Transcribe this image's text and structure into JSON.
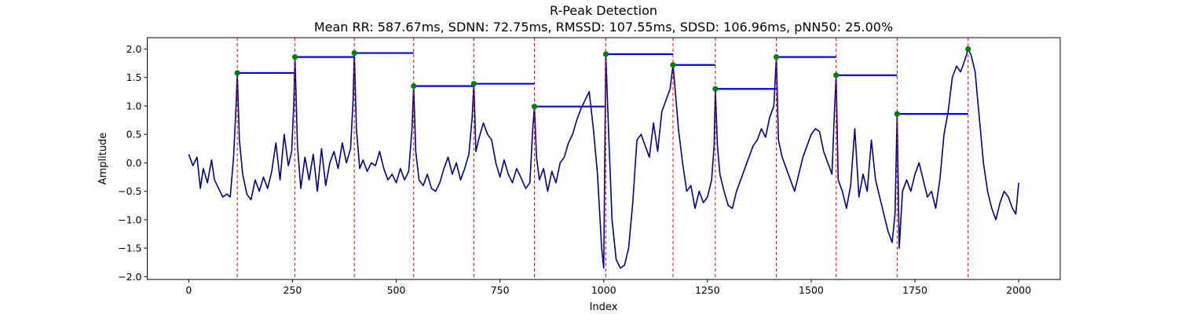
{
  "chart_data": {
    "type": "line",
    "title": "R-Peak Detection",
    "subtitle": "Mean RR: 587.67ms, SDNN: 72.75ms, RMSSD: 107.55ms, SDSD: 106.96ms, pNN50: 25.00%",
    "xlabel": "Index",
    "ylabel": "Amplitude",
    "xlim": [
      -100,
      2100
    ],
    "ylim": [
      -2.05,
      2.2
    ],
    "xticks": [
      0,
      250,
      500,
      750,
      1000,
      1250,
      1500,
      1750,
      2000
    ],
    "xtick_labels": [
      "0",
      "250",
      "500",
      "750",
      "1000",
      "1250",
      "1500",
      "1750",
      "2000"
    ],
    "yticks": [
      -2.0,
      -1.5,
      -1.0,
      -0.5,
      0.0,
      0.5,
      1.0,
      1.5,
      2.0
    ],
    "ytick_labels": [
      "−2.0",
      "−1.5",
      "−1.0",
      "−0.5",
      "0.0",
      "0.5",
      "1.0",
      "1.5",
      "2.0"
    ],
    "grid": false,
    "colors": {
      "signal": "#00008b",
      "peak_marker": "#008000",
      "peak_line": "#ff0000",
      "rr_segment": "#0000ff"
    },
    "signal_outline": [
      [
        0,
        0.15
      ],
      [
        10,
        -0.05
      ],
      [
        20,
        0.1
      ],
      [
        28,
        -0.45
      ],
      [
        35,
        -0.1
      ],
      [
        45,
        -0.35
      ],
      [
        55,
        0.05
      ],
      [
        62,
        -0.3
      ],
      [
        72,
        -0.45
      ],
      [
        82,
        -0.6
      ],
      [
        92,
        -0.55
      ],
      [
        100,
        -0.6
      ],
      [
        108,
        0.1
      ],
      [
        114,
        1.0
      ],
      [
        117,
        1.58
      ],
      [
        122,
        0.4
      ],
      [
        130,
        -0.2
      ],
      [
        140,
        -0.55
      ],
      [
        150,
        -0.65
      ],
      [
        160,
        -0.3
      ],
      [
        170,
        -0.5
      ],
      [
        180,
        -0.25
      ],
      [
        190,
        -0.45
      ],
      [
        200,
        -0.15
      ],
      [
        210,
        0.35
      ],
      [
        220,
        -0.3
      ],
      [
        230,
        0.5
      ],
      [
        240,
        -0.05
      ],
      [
        248,
        0.2
      ],
      [
        253,
        1.0
      ],
      [
        256,
        1.86
      ],
      [
        262,
        0.3
      ],
      [
        270,
        -0.45
      ],
      [
        280,
        0.1
      ],
      [
        290,
        -0.3
      ],
      [
        300,
        0.15
      ],
      [
        310,
        -0.5
      ],
      [
        320,
        0.25
      ],
      [
        330,
        -0.4
      ],
      [
        340,
        0.0
      ],
      [
        350,
        0.2
      ],
      [
        360,
        -0.1
      ],
      [
        370,
        0.35
      ],
      [
        380,
        0.0
      ],
      [
        390,
        0.25
      ],
      [
        396,
        1.1
      ],
      [
        399,
        1.93
      ],
      [
        404,
        0.6
      ],
      [
        412,
        -0.1
      ],
      [
        420,
        0.05
      ],
      [
        430,
        -0.15
      ],
      [
        440,
        0.0
      ],
      [
        450,
        -0.05
      ],
      [
        460,
        0.2
      ],
      [
        470,
        -0.1
      ],
      [
        480,
        -0.3
      ],
      [
        490,
        -0.2
      ],
      [
        500,
        -0.35
      ],
      [
        510,
        -0.1
      ],
      [
        520,
        -0.3
      ],
      [
        530,
        -0.15
      ],
      [
        538,
        0.6
      ],
      [
        542,
        1.35
      ],
      [
        547,
        0.2
      ],
      [
        555,
        -0.3
      ],
      [
        565,
        -0.4
      ],
      [
        575,
        -0.2
      ],
      [
        585,
        -0.45
      ],
      [
        595,
        -0.5
      ],
      [
        605,
        -0.35
      ],
      [
        615,
        -0.1
      ],
      [
        625,
        0.1
      ],
      [
        635,
        -0.2
      ],
      [
        645,
        0.0
      ],
      [
        655,
        -0.3
      ],
      [
        665,
        -0.1
      ],
      [
        675,
        0.15
      ],
      [
        683,
        0.8
      ],
      [
        687,
        1.39
      ],
      [
        692,
        0.2
      ],
      [
        700,
        0.45
      ],
      [
        710,
        0.7
      ],
      [
        720,
        0.5
      ],
      [
        730,
        0.4
      ],
      [
        740,
        0.0
      ],
      [
        750,
        -0.25
      ],
      [
        760,
        0.05
      ],
      [
        770,
        -0.2
      ],
      [
        780,
        -0.35
      ],
      [
        790,
        -0.1
      ],
      [
        800,
        -0.25
      ],
      [
        812,
        -0.45
      ],
      [
        822,
        -0.35
      ],
      [
        829,
        0.6
      ],
      [
        833,
        0.99
      ],
      [
        838,
        0.1
      ],
      [
        845,
        -0.3
      ],
      [
        855,
        -0.1
      ],
      [
        865,
        -0.5
      ],
      [
        875,
        -0.15
      ],
      [
        885,
        -0.35
      ],
      [
        895,
        0.0
      ],
      [
        905,
        0.1
      ],
      [
        915,
        0.35
      ],
      [
        925,
        0.5
      ],
      [
        935,
        0.75
      ],
      [
        945,
        0.95
      ],
      [
        955,
        1.1
      ],
      [
        965,
        1.25
      ],
      [
        975,
        0.6
      ],
      [
        985,
        -0.2
      ],
      [
        995,
        -1.5
      ],
      [
        1000,
        -1.85
      ],
      [
        1005,
        1.91
      ],
      [
        1012,
        0.5
      ],
      [
        1020,
        -1.0
      ],
      [
        1030,
        -1.7
      ],
      [
        1040,
        -1.85
      ],
      [
        1050,
        -1.8
      ],
      [
        1060,
        -1.5
      ],
      [
        1070,
        -0.7
      ],
      [
        1080,
        0.4
      ],
      [
        1090,
        0.5
      ],
      [
        1100,
        0.3
      ],
      [
        1110,
        0.1
      ],
      [
        1120,
        0.7
      ],
      [
        1130,
        0.2
      ],
      [
        1140,
        0.9
      ],
      [
        1150,
        1.1
      ],
      [
        1160,
        1.3
      ],
      [
        1167,
        1.72
      ],
      [
        1172,
        1.3
      ],
      [
        1180,
        0.6
      ],
      [
        1190,
        0.0
      ],
      [
        1200,
        -0.5
      ],
      [
        1210,
        -0.4
      ],
      [
        1220,
        -0.8
      ],
      [
        1230,
        -0.5
      ],
      [
        1240,
        -0.7
      ],
      [
        1250,
        -0.6
      ],
      [
        1260,
        -0.3
      ],
      [
        1266,
        0.3
      ],
      [
        1269,
        1.3
      ],
      [
        1274,
        0.3
      ],
      [
        1280,
        -0.2
      ],
      [
        1290,
        -0.5
      ],
      [
        1300,
        -0.75
      ],
      [
        1310,
        -0.8
      ],
      [
        1320,
        -0.5
      ],
      [
        1330,
        -0.3
      ],
      [
        1340,
        -0.1
      ],
      [
        1350,
        0.1
      ],
      [
        1360,
        0.3
      ],
      [
        1370,
        0.4
      ],
      [
        1380,
        0.6
      ],
      [
        1390,
        0.45
      ],
      [
        1400,
        0.8
      ],
      [
        1410,
        1.0
      ],
      [
        1416,
        1.86
      ],
      [
        1421,
        0.4
      ],
      [
        1430,
        0.1
      ],
      [
        1440,
        -0.1
      ],
      [
        1450,
        -0.3
      ],
      [
        1460,
        -0.5
      ],
      [
        1470,
        -0.2
      ],
      [
        1480,
        0.1
      ],
      [
        1490,
        0.3
      ],
      [
        1500,
        0.5
      ],
      [
        1510,
        0.6
      ],
      [
        1520,
        0.55
      ],
      [
        1530,
        0.2
      ],
      [
        1540,
        0.0
      ],
      [
        1550,
        -0.2
      ],
      [
        1556,
        0.9
      ],
      [
        1560,
        1.54
      ],
      [
        1565,
        -0.3
      ],
      [
        1575,
        -0.5
      ],
      [
        1585,
        -0.8
      ],
      [
        1595,
        -0.4
      ],
      [
        1605,
        0.6
      ],
      [
        1615,
        -0.6
      ],
      [
        1625,
        -0.2
      ],
      [
        1635,
        -0.5
      ],
      [
        1645,
        0.4
      ],
      [
        1655,
        -0.3
      ],
      [
        1665,
        -0.6
      ],
      [
        1675,
        -0.9
      ],
      [
        1685,
        -1.2
      ],
      [
        1695,
        -1.4
      ],
      [
        1702,
        -0.9
      ],
      [
        1707,
        0.86
      ],
      [
        1712,
        -1.5
      ],
      [
        1720,
        -0.5
      ],
      [
        1730,
        -0.3
      ],
      [
        1740,
        -0.5
      ],
      [
        1750,
        -0.2
      ],
      [
        1760,
        0.0
      ],
      [
        1770,
        -0.3
      ],
      [
        1780,
        -0.6
      ],
      [
        1790,
        -0.5
      ],
      [
        1800,
        -0.8
      ],
      [
        1810,
        -0.3
      ],
      [
        1820,
        0.5
      ],
      [
        1830,
        0.9
      ],
      [
        1840,
        1.5
      ],
      [
        1850,
        1.7
      ],
      [
        1860,
        1.6
      ],
      [
        1870,
        1.8
      ],
      [
        1878,
        2.0
      ],
      [
        1885,
        1.9
      ],
      [
        1895,
        1.6
      ],
      [
        1905,
        0.8
      ],
      [
        1915,
        0.0
      ],
      [
        1925,
        -0.5
      ],
      [
        1935,
        -0.8
      ],
      [
        1945,
        -1.0
      ],
      [
        1955,
        -0.7
      ],
      [
        1965,
        -0.5
      ],
      [
        1975,
        -0.6
      ],
      [
        1985,
        -0.8
      ],
      [
        1993,
        -0.9
      ],
      [
        2000,
        -0.35
      ]
    ],
    "peaks": [
      {
        "x": 117,
        "y": 1.58
      },
      {
        "x": 256,
        "y": 1.86
      },
      {
        "x": 399,
        "y": 1.93
      },
      {
        "x": 542,
        "y": 1.35
      },
      {
        "x": 687,
        "y": 1.39
      },
      {
        "x": 833,
        "y": 0.99
      },
      {
        "x": 1005,
        "y": 1.91
      },
      {
        "x": 1167,
        "y": 1.72
      },
      {
        "x": 1269,
        "y": 1.3
      },
      {
        "x": 1416,
        "y": 1.86
      },
      {
        "x": 1560,
        "y": 1.54
      },
      {
        "x": 1707,
        "y": 0.86
      },
      {
        "x": 1878,
        "y": 2.0
      }
    ],
    "rr_segments": [
      {
        "x1": 117,
        "x2": 256,
        "y": 1.58
      },
      {
        "x1": 256,
        "x2": 399,
        "y": 1.86
      },
      {
        "x1": 399,
        "x2": 542,
        "y": 1.93
      },
      {
        "x1": 542,
        "x2": 687,
        "y": 1.35
      },
      {
        "x1": 687,
        "x2": 833,
        "y": 1.39
      },
      {
        "x1": 833,
        "x2": 1005,
        "y": 0.99
      },
      {
        "x1": 1005,
        "x2": 1167,
        "y": 1.91
      },
      {
        "x1": 1167,
        "x2": 1269,
        "y": 1.72
      },
      {
        "x1": 1269,
        "x2": 1416,
        "y": 1.3
      },
      {
        "x1": 1416,
        "x2": 1560,
        "y": 1.86
      },
      {
        "x1": 1560,
        "x2": 1707,
        "y": 1.54
      },
      {
        "x1": 1707,
        "x2": 1878,
        "y": 0.86
      }
    ]
  }
}
